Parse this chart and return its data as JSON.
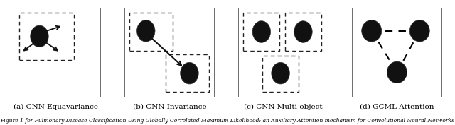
{
  "panel_labels": [
    "(a) CNN Equavariance",
    "(b) CNN Invariance",
    "(c) CNN Multi-object",
    "(d) GCML Attention"
  ],
  "caption": "Figure 1 for Pulmonary Disease Classification Using Globally Correlated Maximum Likelihood: an Auxiliary Attention mechanism for Convolutional Neural Networks",
  "caption_fontsize": 5.5,
  "label_fontsize": 7.5,
  "panel_bg": "#ffffff",
  "outer_bg": "#e8e8e8",
  "panel_edge_color": "#555555",
  "dashed_box_color": "#222222",
  "circle_color": "#111111",
  "arrow_color": "#111111"
}
